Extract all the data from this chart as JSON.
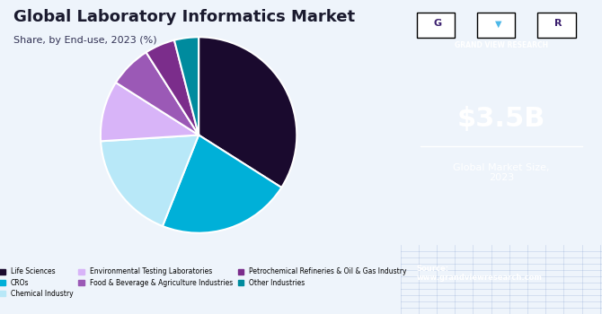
{
  "title": "Global Laboratory Informatics Market",
  "subtitle": "Share, by End-use, 2023 (%)",
  "slices": [
    {
      "label": "Life Sciences",
      "value": 34,
      "color": "#1a0a2e"
    },
    {
      "label": "CROs",
      "value": 22,
      "color": "#00b0d8"
    },
    {
      "label": "Chemical Industry",
      "value": 18,
      "color": "#b8e8f8"
    },
    {
      "label": "Environmental Testing Laboratories",
      "value": 10,
      "color": "#d8b4f8"
    },
    {
      "label": "Food & Beverage & Agriculture Industries",
      "value": 7,
      "color": "#9b59b6"
    },
    {
      "label": "Petrochemical Refineries & Oil & Gas Industry",
      "value": 5,
      "color": "#7b2d8b"
    },
    {
      "label": "Other Industries",
      "value": 4,
      "color": "#008b9e"
    }
  ],
  "side_panel_color": "#3b1f6e",
  "main_bg_color": "#eef4fb",
  "market_size_text": "$3.5B",
  "market_size_label": "Global Market Size,\n2023",
  "source_text": "Source:\nwww.grandviewresearch.com",
  "gvr_label": "GRAND VIEW RESEARCH",
  "start_angle": 90
}
